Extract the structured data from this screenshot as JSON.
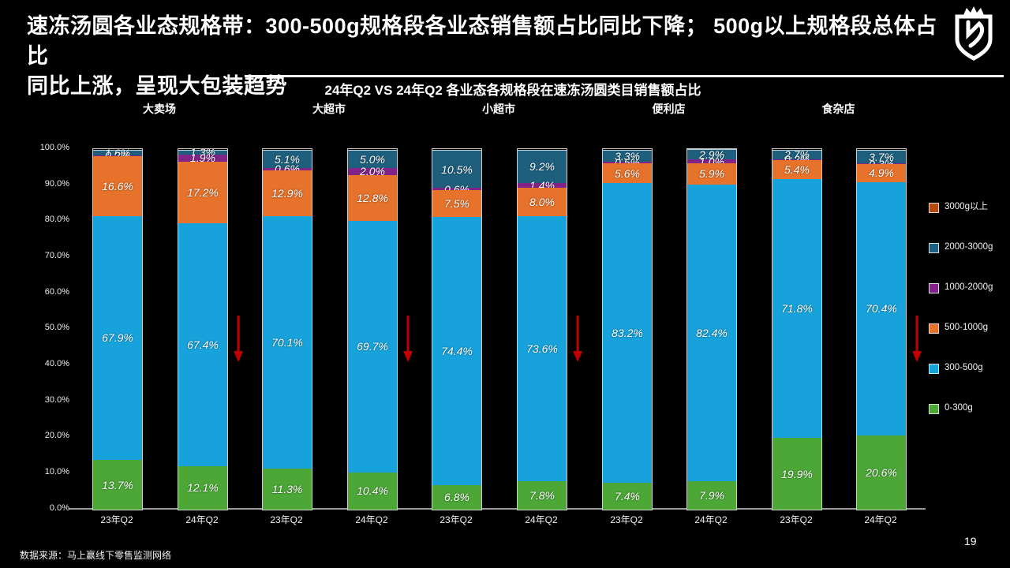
{
  "slide": {
    "title_line1": "速冻汤圆各业态规格带：300-500g规格段各业态销售额占比同比下降； 500g以上规格段总体占比",
    "title_line2": "同比上涨，呈现大包装趋势",
    "source": "数据来源：马上赢线下零售监测网络",
    "page_number": "19",
    "logo_icon": "shield-crown-logo"
  },
  "chart_data": {
    "type": "bar",
    "stacked": true,
    "title": "24年Q2 VS 24年Q2 各业态各规格段在速冻汤圆类目销售额占比",
    "ylabel": "",
    "xlabel": "",
    "ylim": [
      0,
      100
    ],
    "grid": false,
    "y_ticks": [
      "100.0%",
      "90.0%",
      "80.0%",
      "70.0%",
      "60.0%",
      "50.0%",
      "40.0%",
      "30.0%",
      "20.0%",
      "10.0%",
      "0.0%"
    ],
    "groups": [
      "大卖场",
      "大超市",
      "小超市",
      "便利店",
      "食杂店"
    ],
    "x_tick_labels": [
      "23年Q2",
      "24年Q2"
    ],
    "order_bottom_to_top": [
      "0-300g",
      "300-500g",
      "500-1000g",
      "1000-2000g",
      "2000-3000g",
      "3000g以上"
    ],
    "colors": {
      "0-300g": "#4CA737",
      "300-500g": "#17A2DB",
      "500-1000g": "#E7722B",
      "1000-2000g": "#822487",
      "2000-3000g": "#1E5F7D",
      "3000g以上": "#B4490E"
    },
    "legend_position": "right",
    "legend": [
      {
        "label": "3000g以上",
        "color": "#B4490E"
      },
      {
        "label": "2000-3000g",
        "color": "#1E5F7D"
      },
      {
        "label": "1000-2000g",
        "color": "#822487"
      },
      {
        "label": "500-1000g",
        "color": "#E7722B"
      },
      {
        "label": "300-500g",
        "color": "#17A2DB"
      },
      {
        "label": "0-300g",
        "color": "#4CA737"
      }
    ],
    "bars": [
      {
        "group": "大卖场",
        "period": "23年Q2",
        "values": {
          "0-300g": 13.7,
          "300-500g": 67.9,
          "500-1000g": 16.6,
          "1000-2000g": 0.2,
          "2000-3000g": 1.6,
          "3000g以上": 0
        }
      },
      {
        "group": "大卖场",
        "period": "24年Q2",
        "values": {
          "0-300g": 12.1,
          "300-500g": 67.4,
          "500-1000g": 17.2,
          "1000-2000g": 1.9,
          "2000-3000g": 1.3,
          "3000g以上": 0
        }
      },
      {
        "group": "大超市",
        "period": "23年Q2",
        "values": {
          "0-300g": 11.3,
          "300-500g": 70.1,
          "500-1000g": 12.9,
          "1000-2000g": 0.6,
          "2000-3000g": 5.1,
          "3000g以上": 0
        }
      },
      {
        "group": "大超市",
        "period": "24年Q2",
        "values": {
          "0-300g": 10.4,
          "300-500g": 69.7,
          "500-1000g": 12.8,
          "1000-2000g": 2.0,
          "2000-3000g": 5.0,
          "3000g以上": 0
        }
      },
      {
        "group": "小超市",
        "period": "23年Q2",
        "values": {
          "0-300g": 6.8,
          "300-500g": 74.4,
          "500-1000g": 7.5,
          "1000-2000g": 0.6,
          "2000-3000g": 10.5,
          "3000g以上": 0
        }
      },
      {
        "group": "小超市",
        "period": "24年Q2",
        "values": {
          "0-300g": 7.8,
          "300-500g": 73.6,
          "500-1000g": 8.0,
          "1000-2000g": 1.4,
          "2000-3000g": 9.2,
          "3000g以上": 0
        }
      },
      {
        "group": "便利店",
        "period": "23年Q2",
        "values": {
          "0-300g": 7.4,
          "300-500g": 83.2,
          "500-1000g": 5.6,
          "1000-2000g": 0.5,
          "2000-3000g": 3.3,
          "3000g以上": 0
        }
      },
      {
        "group": "便利店",
        "period": "24年Q2",
        "values": {
          "0-300g": 7.9,
          "300-500g": 82.4,
          "500-1000g": 5.9,
          "1000-2000g": 1.0,
          "2000-3000g": 2.9,
          "3000g以上": 0
        }
      },
      {
        "group": "食杂店",
        "period": "23年Q2",
        "values": {
          "0-300g": 19.9,
          "300-500g": 71.8,
          "500-1000g": 5.4,
          "1000-2000g": 0.2,
          "2000-3000g": 2.7,
          "3000g以上": 0
        }
      },
      {
        "group": "食杂店",
        "period": "24年Q2",
        "values": {
          "0-300g": 20.6,
          "300-500g": 70.4,
          "500-1000g": 4.9,
          "1000-2000g": 0.3,
          "2000-3000g": 3.7,
          "3000g以上": 0
        }
      }
    ],
    "decline_arrows_after_bar_indices": [
      1,
      3,
      5,
      9
    ],
    "arrow_color": "#C00000"
  }
}
